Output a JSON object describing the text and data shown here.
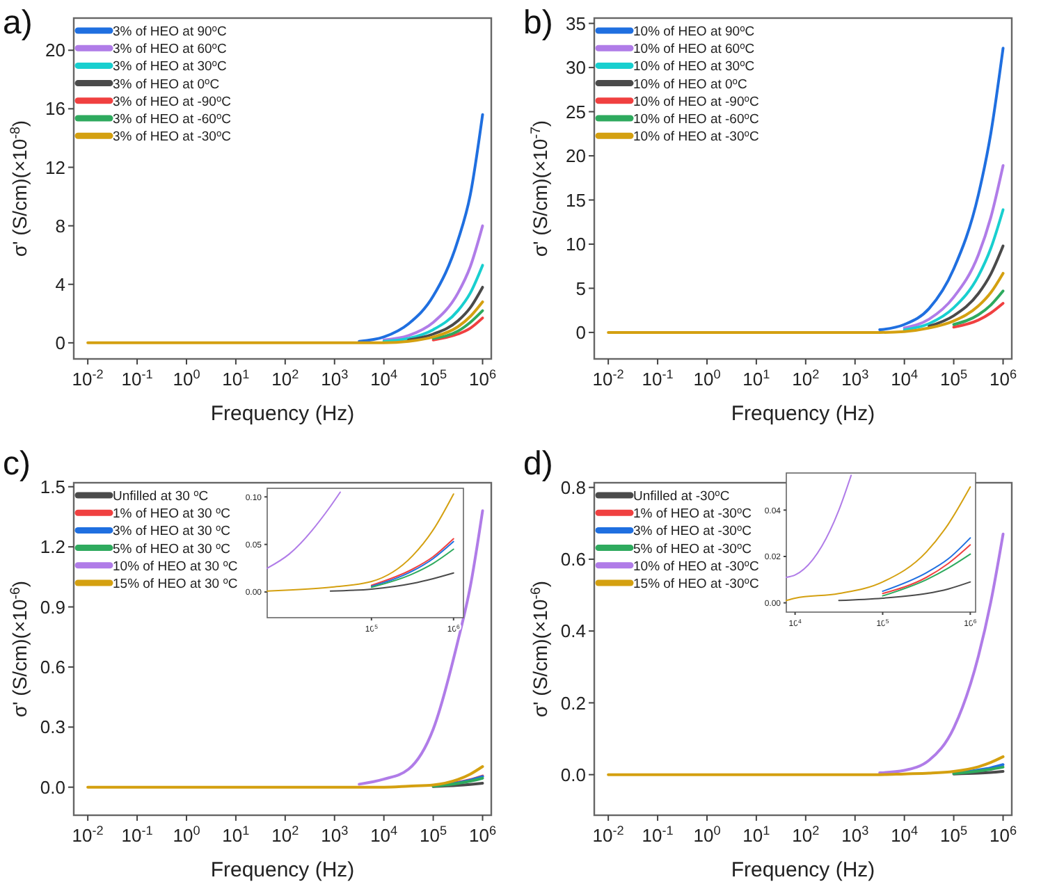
{
  "chart_data": [
    {
      "type": "line",
      "title": "a)",
      "xlabel": "Frequency (Hz)",
      "ylabel": "σ' (S/cm)(×10$^{-8}$)",
      "log": "x",
      "legend": "top left",
      "x": [
        0.01,
        1,
        100,
        1000,
        3162,
        10000,
        31623,
        100000,
        316228,
        562341,
        1000000
      ],
      "xlim": [
        0.0052,
        1500000
      ],
      "xticks": [
        {
          "value": 0.01,
          "label": "10$^{-2}$"
        },
        {
          "value": 0.1,
          "label": "10$^{-1}$"
        },
        {
          "value": 1,
          "label": "10$^{0}$"
        },
        {
          "value": 10,
          "label": "10$^{1}$"
        },
        {
          "value": 100,
          "label": "10$^{2}$"
        },
        {
          "value": 1000,
          "label": "10$^{3}$"
        },
        {
          "value": 10000,
          "label": "10$^{4}$"
        },
        {
          "value": 100000,
          "label": "10$^{5}$"
        },
        {
          "value": 1000000,
          "label": "10$^{6}$"
        }
      ],
      "ylim": [
        -1.1,
        22.2
      ],
      "yticks": [
        0,
        4,
        8,
        12,
        16,
        20
      ],
      "series": [
        {
          "name": "3% of HEO at 90$^{o}$C",
          "color": "#1f6fe0",
          "values": [
            null,
            null,
            null,
            null,
            0.1,
            0.4,
            1.3,
            3.2,
            7.0,
            10.1,
            15.6
          ]
        },
        {
          "name": "3% of HEO at 60$^{o}$C",
          "color": "#b07ce8",
          "values": [
            null,
            null,
            null,
            null,
            null,
            0.2,
            0.5,
            1.4,
            3.4,
            5.2,
            8.0
          ]
        },
        {
          "name": "3% of HEO at 30$^{o}$C",
          "color": "#18cfcf",
          "values": [
            null,
            null,
            null,
            null,
            null,
            0.1,
            0.3,
            0.9,
            2.2,
            3.4,
            5.3
          ]
        },
        {
          "name": "3% of HEO at 0$^{o}$C",
          "color": "#4a4a4a",
          "values": [
            null,
            null,
            null,
            null,
            null,
            null,
            0.2,
            0.6,
            1.5,
            2.4,
            3.8
          ]
        },
        {
          "name": "3% of HEO at -90$^{o}$C",
          "color": "#f04040",
          "values": [
            null,
            null,
            null,
            null,
            null,
            null,
            null,
            0.2,
            0.6,
            1.0,
            1.7
          ]
        },
        {
          "name": "3% of HEO at -60$^{o}$C",
          "color": "#2eaa5e",
          "values": [
            null,
            null,
            null,
            null,
            null,
            null,
            null,
            0.3,
            0.8,
            1.4,
            2.2
          ]
        },
        {
          "name": "3% of HEO at -30$^{o}$C",
          "color": "#d4a010",
          "values": [
            0,
            0,
            0,
            0,
            0,
            0,
            0.1,
            0.4,
            1.1,
            1.8,
            2.8
          ]
        }
      ]
    },
    {
      "type": "line",
      "title": "b)",
      "xlabel": "Frequency (Hz)",
      "ylabel": "σ' (S/cm)(×10$^{-7}$)",
      "log": "x",
      "legend": "top left",
      "x": [
        0.01,
        1,
        100,
        1000,
        3162,
        10000,
        31623,
        100000,
        316228,
        562341,
        1000000
      ],
      "xlim": [
        0.0052,
        1500000
      ],
      "xticks": [
        {
          "value": 0.01,
          "label": "10$^{-2}$"
        },
        {
          "value": 0.1,
          "label": "10$^{-1}$"
        },
        {
          "value": 1,
          "label": "10$^{0}$"
        },
        {
          "value": 10,
          "label": "10$^{1}$"
        },
        {
          "value": 100,
          "label": "10$^{2}$"
        },
        {
          "value": 1000,
          "label": "10$^{3}$"
        },
        {
          "value": 10000,
          "label": "10$^{4}$"
        },
        {
          "value": 100000,
          "label": "10$^{5}$"
        },
        {
          "value": 1000000,
          "label": "10$^{6}$"
        }
      ],
      "ylim": [
        -3,
        35.6
      ],
      "yticks": [
        0,
        5,
        10,
        15,
        20,
        25,
        30,
        35
      ],
      "series": [
        {
          "name": "10% of HEO at 90$^{o}$C",
          "color": "#1f6fe0",
          "values": [
            null,
            null,
            null,
            null,
            0.3,
            0.9,
            2.7,
            7.2,
            15.6,
            22.5,
            32.2
          ]
        },
        {
          "name": "10% of HEO at 60$^{o}$C",
          "color": "#b07ce8",
          "values": [
            null,
            null,
            null,
            null,
            null,
            0.5,
            1.5,
            4.0,
            8.8,
            13.0,
            18.9
          ]
        },
        {
          "name": "10% of HEO at 30$^{o}$C",
          "color": "#18cfcf",
          "values": [
            null,
            null,
            null,
            null,
            null,
            0.3,
            1.0,
            2.8,
            6.4,
            9.5,
            13.9
          ]
        },
        {
          "name": "10% of HEO at 0$^{o}$C",
          "color": "#4a4a4a",
          "values": [
            null,
            null,
            null,
            null,
            null,
            null,
            0.7,
            1.9,
            4.4,
            6.6,
            9.8
          ]
        },
        {
          "name": "10% of HEO at -90$^{o}$C",
          "color": "#f04040",
          "values": [
            null,
            null,
            null,
            null,
            null,
            null,
            null,
            0.6,
            1.4,
            2.2,
            3.3
          ]
        },
        {
          "name": "10% of HEO at -60$^{o}$C",
          "color": "#2eaa5e",
          "values": [
            null,
            null,
            null,
            null,
            null,
            null,
            null,
            0.9,
            2.0,
            3.1,
            4.7
          ]
        },
        {
          "name": "10% of HEO at -30$^{o}$C",
          "color": "#d4a010",
          "values": [
            0,
            0,
            0,
            0,
            0,
            0.1,
            0.5,
            1.3,
            3.0,
            4.5,
            6.7
          ]
        }
      ]
    },
    {
      "type": "line",
      "title": "c)",
      "xlabel": "Frequency (Hz)",
      "ylabel": "σ' (S/cm)(×10$^{-6}$)",
      "log": "x",
      "legend": "top left",
      "x": [
        0.01,
        1,
        100,
        1000,
        3162,
        10000,
        31623,
        100000,
        316228,
        562341,
        1000000
      ],
      "xlim": [
        0.0052,
        1500000
      ],
      "xticks": [
        {
          "value": 0.01,
          "label": "10$^{-2}$"
        },
        {
          "value": 0.1,
          "label": "10$^{-1}$"
        },
        {
          "value": 1,
          "label": "10$^{0}$"
        },
        {
          "value": 10,
          "label": "10$^{1}$"
        },
        {
          "value": 100,
          "label": "10$^{2}$"
        },
        {
          "value": 1000,
          "label": "10$^{3}$"
        },
        {
          "value": 10000,
          "label": "10$^{4}$"
        },
        {
          "value": 100000,
          "label": "10$^{5}$"
        },
        {
          "value": 1000000,
          "label": "10$^{6}$"
        }
      ],
      "ylim": [
        -0.14,
        1.52
      ],
      "yticks": [
        {
          "value": 0,
          "label": "0.0"
        },
        {
          "value": 0.3,
          "label": "0.3"
        },
        {
          "value": 0.6,
          "label": "0.6"
        },
        {
          "value": 0.9,
          "label": "0.9"
        },
        {
          "value": 1.2,
          "label": "1.2"
        },
        {
          "value": 1.5,
          "label": "1.5"
        }
      ],
      "series": [
        {
          "name": "Unfilled at 30 $^{o}$C",
          "color": "#4a4a4a",
          "values": [
            null,
            null,
            null,
            null,
            null,
            null,
            null,
            0.003,
            0.009,
            0.014,
            0.02
          ]
        },
        {
          "name": "1% of HEO at 30 $^{o}$C",
          "color": "#f04040",
          "values": [
            null,
            null,
            null,
            null,
            null,
            null,
            null,
            0.007,
            0.024,
            0.037,
            0.056
          ]
        },
        {
          "name": "3% of HEO at 30 $^{o}$C",
          "color": "#1f6fe0",
          "values": [
            null,
            null,
            null,
            null,
            null,
            null,
            null,
            0.006,
            0.022,
            0.035,
            0.053
          ]
        },
        {
          "name": "5% of HEO at 30 $^{o}$C",
          "color": "#2eaa5e",
          "values": [
            null,
            null,
            null,
            null,
            null,
            null,
            null,
            0.005,
            0.019,
            0.03,
            0.045
          ]
        },
        {
          "name": "10% of HEO at 30 $^{o}$C",
          "color": "#b07ce8",
          "values": [
            null,
            null,
            null,
            null,
            0.015,
            0.04,
            0.09,
            0.29,
            0.73,
            1.0,
            1.38
          ]
        },
        {
          "name": "15% of HEO at 30 $^{o}$C",
          "color": "#d4a010",
          "values": [
            0,
            0,
            0,
            0,
            0,
            0,
            0.005,
            0.011,
            0.038,
            0.065,
            0.103
          ]
        }
      ]
    },
    {
      "type": "line",
      "log": "x",
      "x": [
        5370,
        10000,
        31623,
        100000,
        316228,
        562341,
        1000000
      ],
      "xlim": [
        5370,
        1320000
      ],
      "xticks": [
        {
          "value": 100000,
          "label": "10$^{5}$"
        },
        {
          "value": 1000000,
          "label": "10$^{6}$"
        }
      ],
      "ylim": [
        -0.027,
        0.109
      ],
      "yticks": [
        {
          "value": 0,
          "label": "0.00"
        },
        {
          "value": 0.05,
          "label": "0.05"
        },
        {
          "value": 0.1,
          "label": "0.10"
        }
      ],
      "series": [
        {
          "color": "#4a4a4a",
          "values": [
            null,
            null,
            0.001,
            0.003,
            0.009,
            0.014,
            0.02
          ]
        },
        {
          "color": "#f04040",
          "values": [
            null,
            null,
            null,
            0.007,
            0.024,
            0.037,
            0.056
          ]
        },
        {
          "color": "#1f6fe0",
          "values": [
            null,
            null,
            null,
            0.006,
            0.022,
            0.035,
            0.053
          ]
        },
        {
          "color": "#2eaa5e",
          "values": [
            null,
            null,
            null,
            0.005,
            0.019,
            0.03,
            0.045
          ]
        },
        {
          "color": "#b07ce8",
          "x": [
            5370,
            10000,
            31623,
            41687
          ],
          "values": [
            0.025,
            0.04,
            0.09,
            0.105
          ]
        },
        {
          "color": "#d4a010",
          "values": [
            0.001,
            0.002,
            0.005,
            0.011,
            0.038,
            0.065,
            0.103
          ]
        }
      ]
    },
    {
      "type": "line",
      "title": "d)",
      "xlabel": "Frequency (Hz)",
      "ylabel": "σ' (S/cm)(×10$^{-6}$)",
      "log": "x",
      "legend": "top left",
      "x": [
        0.01,
        1,
        100,
        1000,
        3162,
        10000,
        31623,
        100000,
        316228,
        562341,
        1000000
      ],
      "xlim": [
        0.0052,
        1500000
      ],
      "xticks": [
        {
          "value": 0.01,
          "label": "10$^{-2}$"
        },
        {
          "value": 0.1,
          "label": "10$^{-1}$"
        },
        {
          "value": 1,
          "label": "10$^{0}$"
        },
        {
          "value": 10,
          "label": "10$^{1}$"
        },
        {
          "value": 100,
          "label": "10$^{2}$"
        },
        {
          "value": 1000,
          "label": "10$^{3}$"
        },
        {
          "value": 10000,
          "label": "10$^{4}$"
        },
        {
          "value": 100000,
          "label": "10$^{5}$"
        },
        {
          "value": 1000000,
          "label": "10$^{6}$"
        }
      ],
      "ylim": [
        -0.113,
        0.813
      ],
      "yticks": [
        {
          "value": 0,
          "label": "0.0"
        },
        {
          "value": 0.2,
          "label": "0.2"
        },
        {
          "value": 0.4,
          "label": "0.4"
        },
        {
          "value": 0.6,
          "label": "0.6"
        },
        {
          "value": 0.8,
          "label": "0.8"
        }
      ],
      "series": [
        {
          "name": "Unfilled at -30$^{o}$C",
          "color": "#4a4a4a",
          "values": [
            null,
            null,
            null,
            null,
            null,
            null,
            null,
            0.002,
            0.004,
            0.006,
            0.009
          ]
        },
        {
          "name": "1% of HEO at -30$^{o}$C",
          "color": "#f04040",
          "values": [
            null,
            null,
            null,
            null,
            null,
            null,
            null,
            null,
            null,
            null,
            null
          ]
        },
        {
          "name": "3% of HEO at -30$^{o}$C",
          "color": "#1f6fe0",
          "values": [
            null,
            null,
            null,
            null,
            null,
            null,
            null,
            0.005,
            0.013,
            0.019,
            0.028
          ]
        },
        {
          "name": "5% of HEO at -30$^{o}$C",
          "color": "#2eaa5e",
          "values": [
            null,
            null,
            null,
            null,
            null,
            null,
            null,
            0.003,
            0.01,
            0.015,
            0.021
          ]
        },
        {
          "name": "10% of HEO at -30$^{o}$C",
          "color": "#b07ce8",
          "values": [
            null,
            null,
            null,
            null,
            0.005,
            0.012,
            0.04,
            0.13,
            0.33,
            0.48,
            0.67
          ]
        },
        {
          "name": "15% of HEO at -30$^{o}$C",
          "color": "#d4a010",
          "values": [
            0,
            0,
            0,
            0,
            0,
            0.002,
            0.004,
            0.009,
            0.022,
            0.034,
            0.05
          ]
        }
      ]
    },
    {
      "type": "line",
      "log": "x",
      "x": [
        7943,
        10000,
        31623,
        100000,
        316228,
        562341,
        1000000
      ],
      "xlim": [
        7943,
        1150000
      ],
      "xticks": [
        {
          "value": 10000,
          "label": "10$^{4}$"
        },
        {
          "value": 100000,
          "label": "10$^{5}$"
        },
        {
          "value": 1000000,
          "label": "10$^{6}$"
        }
      ],
      "ylim": [
        -0.004,
        0.056
      ],
      "yticks": [
        {
          "value": 0,
          "label": "0.00"
        },
        {
          "value": 0.02,
          "label": "0.02"
        },
        {
          "value": 0.04,
          "label": "0.04"
        }
      ],
      "series": [
        {
          "color": "#4a4a4a",
          "values": [
            null,
            null,
            0.001,
            0.002,
            0.004,
            0.006,
            0.009
          ]
        },
        {
          "color": "#f04040",
          "values": [
            null,
            null,
            null,
            0.004,
            0.011,
            0.017,
            0.025
          ]
        },
        {
          "color": "#1f6fe0",
          "values": [
            null,
            null,
            null,
            0.005,
            0.013,
            0.019,
            0.028
          ]
        },
        {
          "color": "#2eaa5e",
          "values": [
            null,
            null,
            null,
            0.003,
            0.01,
            0.015,
            0.021
          ]
        },
        {
          "color": "#b07ce8",
          "x": [
            7943,
            10000,
            31623,
            43652
          ],
          "values": [
            0.011,
            0.012,
            0.04,
            0.055
          ]
        },
        {
          "color": "#d4a010",
          "values": [
            0.001,
            0.002,
            0.004,
            0.009,
            0.022,
            0.034,
            0.05
          ]
        }
      ]
    }
  ]
}
